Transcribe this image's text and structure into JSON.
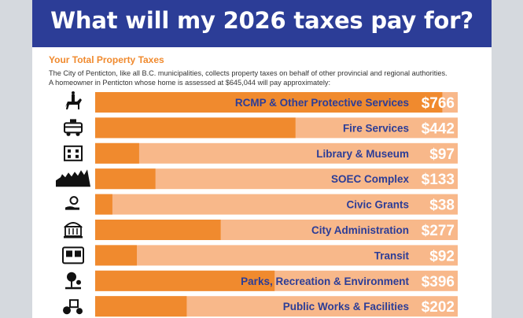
{
  "header": {
    "title": "What will my 2026 taxes pay for?"
  },
  "section": {
    "title": "Your Total Property Taxes",
    "line1": "The City of Penticton, like all B.C. municipalities, collects property taxes on behalf of other provincial and regional authorities.",
    "line2": "A homeowner in Penticton whose home is assessed at $645,044 will pay approximately:"
  },
  "colors": {
    "banner": "#2c3d97",
    "bar_fill": "#f08a2e",
    "bar_track": "#f8b88a",
    "label": "#2c3d97",
    "value": "#ffffff"
  },
  "chart_data": {
    "type": "bar",
    "orientation": "horizontal",
    "currency": "$",
    "xlim": [
      0,
      800
    ],
    "categories": [
      "RCMP & Other Protective Services",
      "Fire Services",
      "Library & Museum",
      "SOEC Complex",
      "Civic Grants",
      "City Administration",
      "Transit",
      "Parks, Recreation & Environment",
      "Public Works & Facilities"
    ],
    "values": [
      766,
      442,
      97,
      133,
      38,
      277,
      92,
      396,
      202
    ],
    "value_labels": [
      "$766",
      "$442",
      "$97",
      "$133",
      "$38",
      "$277",
      "$92",
      "$396",
      "$202"
    ],
    "icons": [
      "mounted-police-icon",
      "fire-truck-icon",
      "library-building-icon",
      "arena-crowd-icon",
      "hand-giving-icon",
      "city-hall-icon",
      "bus-icon",
      "park-tree-icon",
      "road-roller-icon"
    ]
  }
}
